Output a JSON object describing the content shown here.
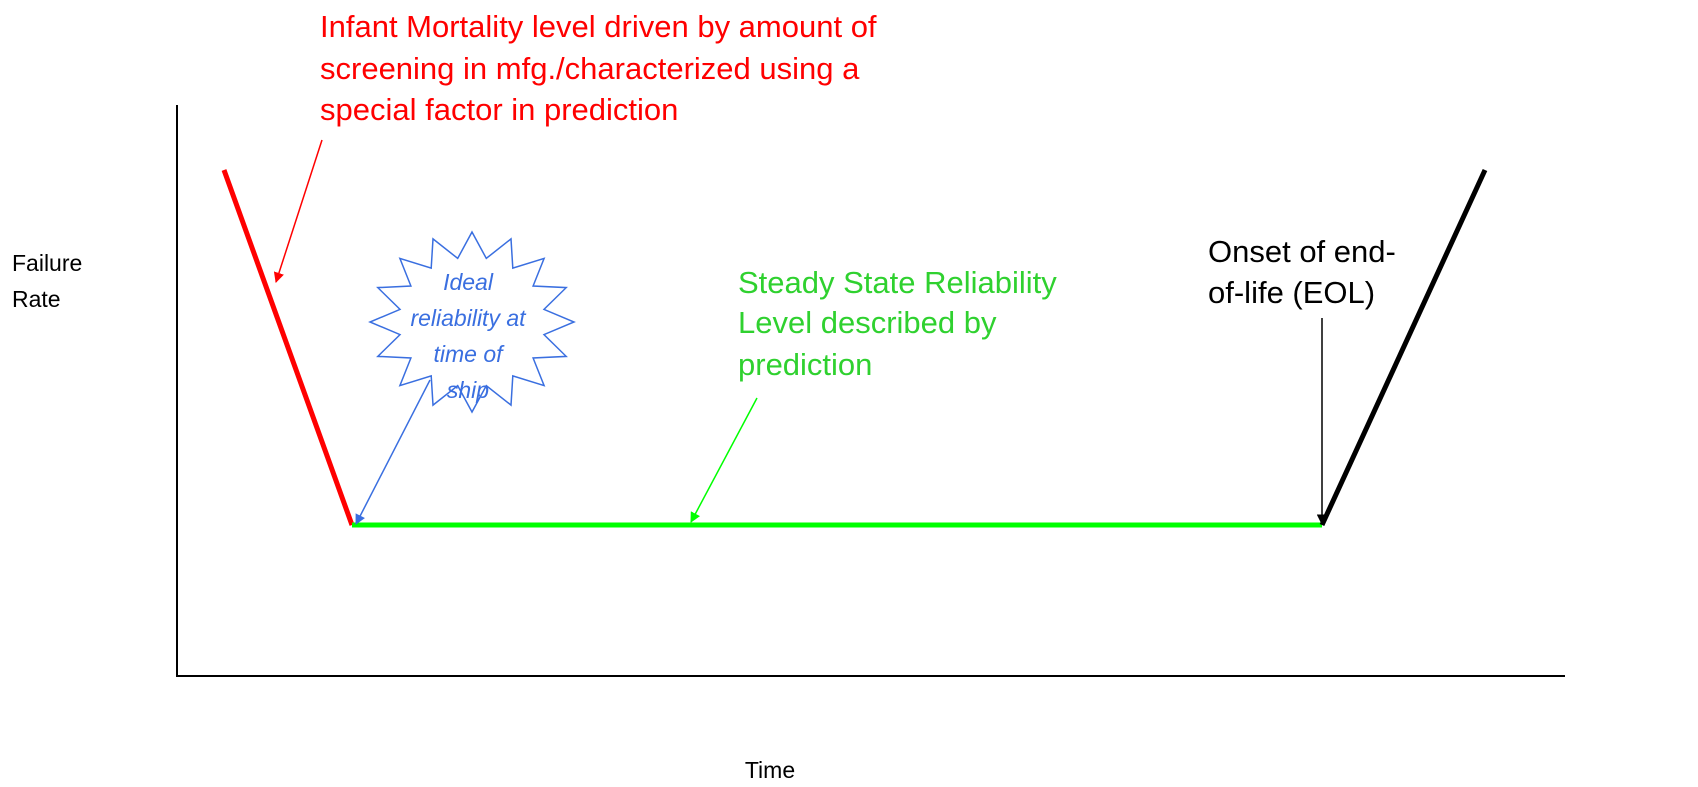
{
  "y_axis_label": [
    "Failure",
    "Rate"
  ],
  "x_axis_label": "Time",
  "annotations": {
    "infant_mortality": [
      "Infant Mortality level driven by amount of",
      "screening in mfg./characterized using a",
      "special factor in prediction"
    ],
    "ideal": [
      "Ideal",
      "reliability at",
      "time of",
      "ship"
    ],
    "steady_state": [
      "Steady State Reliability",
      "Level described by",
      "prediction"
    ],
    "eol": [
      "Onset of end-",
      "of-life (EOL)"
    ]
  }
}
